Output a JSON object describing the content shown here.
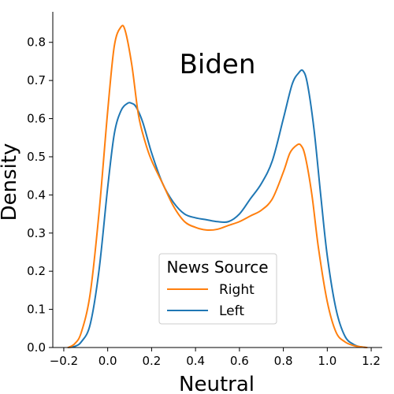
{
  "chart_data": {
    "type": "line",
    "title": "Biden",
    "xlabel": "Neutral",
    "ylabel": "Density",
    "xlim": [
      -0.25,
      1.25
    ],
    "ylim": [
      0,
      0.88
    ],
    "xticks": [
      -0.2,
      0.0,
      0.2,
      0.4,
      0.6,
      0.8,
      1.0,
      1.2
    ],
    "xtick_labels": [
      "−0.2",
      "0.0",
      "0.2",
      "0.4",
      "0.6",
      "0.8",
      "1.0",
      "1.2"
    ],
    "yticks": [
      0.0,
      0.1,
      0.2,
      0.3,
      0.4,
      0.5,
      0.6,
      0.7,
      0.8
    ],
    "ytick_labels": [
      "0.0",
      "0.1",
      "0.2",
      "0.3",
      "0.4",
      "0.5",
      "0.6",
      "0.7",
      "0.8"
    ],
    "grid": false,
    "legend": {
      "title": "News Source",
      "placement": "lower-center"
    },
    "series": [
      {
        "name": "Right",
        "color": "#ff7f0e",
        "x": [
          -0.18,
          -0.15,
          -0.12,
          -0.08,
          -0.04,
          0.0,
          0.03,
          0.06,
          0.08,
          0.11,
          0.14,
          0.17,
          0.2,
          0.25,
          0.3,
          0.35,
          0.4,
          0.45,
          0.5,
          0.55,
          0.6,
          0.65,
          0.7,
          0.75,
          0.8,
          0.83,
          0.86,
          0.88,
          0.9,
          0.93,
          0.96,
          1.0,
          1.04,
          1.08,
          1.12,
          1.15,
          1.18
        ],
        "y": [
          0.0,
          0.01,
          0.04,
          0.14,
          0.35,
          0.62,
          0.79,
          0.84,
          0.83,
          0.74,
          0.61,
          0.54,
          0.49,
          0.43,
          0.37,
          0.33,
          0.315,
          0.308,
          0.31,
          0.32,
          0.33,
          0.345,
          0.36,
          0.39,
          0.46,
          0.51,
          0.53,
          0.53,
          0.5,
          0.4,
          0.26,
          0.12,
          0.04,
          0.015,
          0.005,
          0.002,
          0.0
        ]
      },
      {
        "name": "Left",
        "color": "#1f77b4",
        "x": [
          -0.18,
          -0.15,
          -0.12,
          -0.08,
          -0.04,
          0.0,
          0.03,
          0.06,
          0.09,
          0.11,
          0.13,
          0.16,
          0.2,
          0.25,
          0.3,
          0.35,
          0.4,
          0.45,
          0.5,
          0.55,
          0.6,
          0.65,
          0.7,
          0.75,
          0.8,
          0.84,
          0.87,
          0.89,
          0.91,
          0.94,
          0.97,
          1.0,
          1.04,
          1.08,
          1.12,
          1.15,
          1.18
        ],
        "y": [
          0.0,
          0.003,
          0.015,
          0.06,
          0.2,
          0.42,
          0.56,
          0.62,
          0.64,
          0.64,
          0.63,
          0.59,
          0.51,
          0.43,
          0.38,
          0.35,
          0.34,
          0.335,
          0.33,
          0.33,
          0.35,
          0.39,
          0.43,
          0.49,
          0.6,
          0.69,
          0.72,
          0.725,
          0.69,
          0.57,
          0.4,
          0.24,
          0.1,
          0.03,
          0.008,
          0.002,
          0.0
        ]
      }
    ]
  }
}
